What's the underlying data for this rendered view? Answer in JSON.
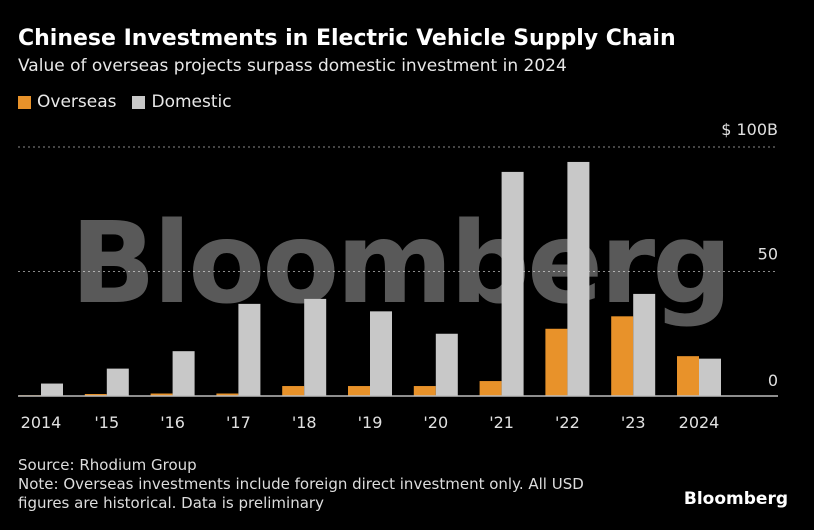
{
  "title": "Chinese Investments in Electric Vehicle Supply Chain",
  "subtitle": "Value of overseas projects surpass domestic investment in 2024",
  "source": "Source: Rhodium Group",
  "note_line1": "Note: Overseas investments include foreign direct investment only. All USD",
  "note_line2": "figures are historical. Data is preliminary",
  "brand": "Bloomberg",
  "watermark": "Bloomberg",
  "colors": {
    "overseas": "#E8922A",
    "domestic": "#C8C8C8",
    "grid": "#8a8a8a"
  },
  "chart_data": {
    "type": "bar",
    "categories": [
      "2014",
      "'15",
      "'16",
      "'17",
      "'18",
      "'19",
      "'20",
      "'21",
      "'22",
      "'23",
      "2024"
    ],
    "series": [
      {
        "name": "Overseas",
        "values": [
          0.3,
          0.8,
          1.0,
          1.0,
          4.0,
          4.0,
          4.0,
          6.0,
          27.0,
          32.0,
          16.0
        ]
      },
      {
        "name": "Domestic",
        "values": [
          5.0,
          11.0,
          18.0,
          37.0,
          39.0,
          34.0,
          25.0,
          90.0,
          94.0,
          41.0,
          15.0
        ]
      }
    ],
    "ylim": [
      0,
      100
    ],
    "yticks": [
      {
        "value": 0,
        "label": "0"
      },
      {
        "value": 50,
        "label": "50"
      },
      {
        "value": 100,
        "label": "$ 100B"
      }
    ],
    "grid": true,
    "legend_position": "top-left"
  }
}
